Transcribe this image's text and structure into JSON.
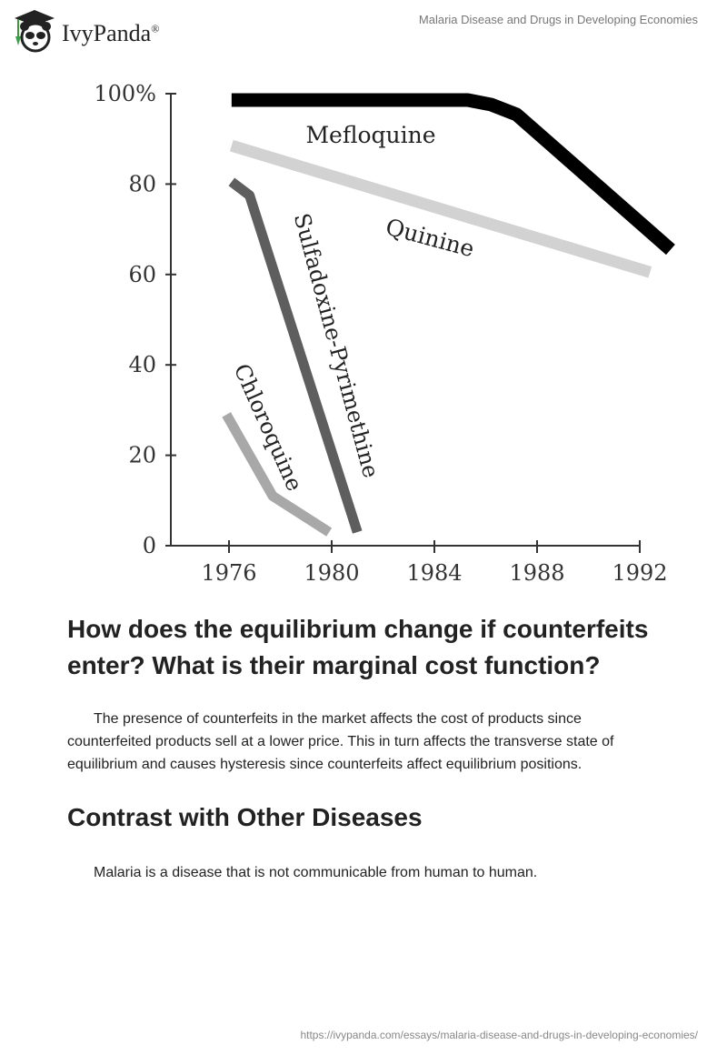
{
  "header": {
    "brand": "IvyPanda",
    "registered": "®",
    "doc_title": "Malaria Disease and Drugs in Developing Economies"
  },
  "chart_data": {
    "type": "line",
    "title": "",
    "xlabel": "",
    "ylabel": "",
    "xlim": [
      1976,
      1992
    ],
    "ylim": [
      0,
      100
    ],
    "x_ticks": [
      1976,
      1980,
      1984,
      1988,
      1992
    ],
    "x_tick_labels": [
      "1976",
      "1980",
      "1984",
      "1988",
      "1992"
    ],
    "y_ticks": [
      0,
      20,
      40,
      60,
      80,
      100
    ],
    "y_tick_labels": [
      "0",
      "20",
      "40",
      "60",
      "80",
      "100%"
    ],
    "grid": false,
    "legend": "inline labels",
    "series": [
      {
        "name": "Mefloquine",
        "color": "#000000",
        "x": [
          1976.1,
          1985.3,
          1986.2,
          1987.2,
          1993.2
        ],
        "y": [
          98.6,
          98.6,
          97.6,
          95.4,
          65.5
        ]
      },
      {
        "name": "Quinine",
        "color": "#d2d2d2",
        "x": [
          1976.1,
          1992.4
        ],
        "y": [
          88.5,
          60.5
        ]
      },
      {
        "name": "Sulfadoxine-Pyrimethine",
        "color": "#5e5e5e",
        "x": [
          1976.1,
          1976.8,
          1981.0
        ],
        "y": [
          80.5,
          77.5,
          3.0
        ]
      },
      {
        "name": "Chloroquine",
        "color": "#a8a8a8",
        "x": [
          1975.9,
          1977.7,
          1979.9
        ],
        "y": [
          29.0,
          11.0,
          3.0
        ]
      }
    ]
  },
  "article": {
    "heading1": "How does the equilibrium change if counterfeits enter? What is their marginal cost function?",
    "paragraph1": "The presence of counterfeits in the market affects the cost of products since counterfeited products sell at a lower price. This in turn affects the transverse state of equilibrium and causes hysteresis since counterfeits affect equilibrium positions.",
    "heading2": "Contrast with Other Diseases",
    "paragraph2": "Malaria is a disease that is not communicable from human to human."
  },
  "footer": {
    "url": "https://ivypanda.com/essays/malaria-disease-and-drugs-in-developing-economies/"
  }
}
